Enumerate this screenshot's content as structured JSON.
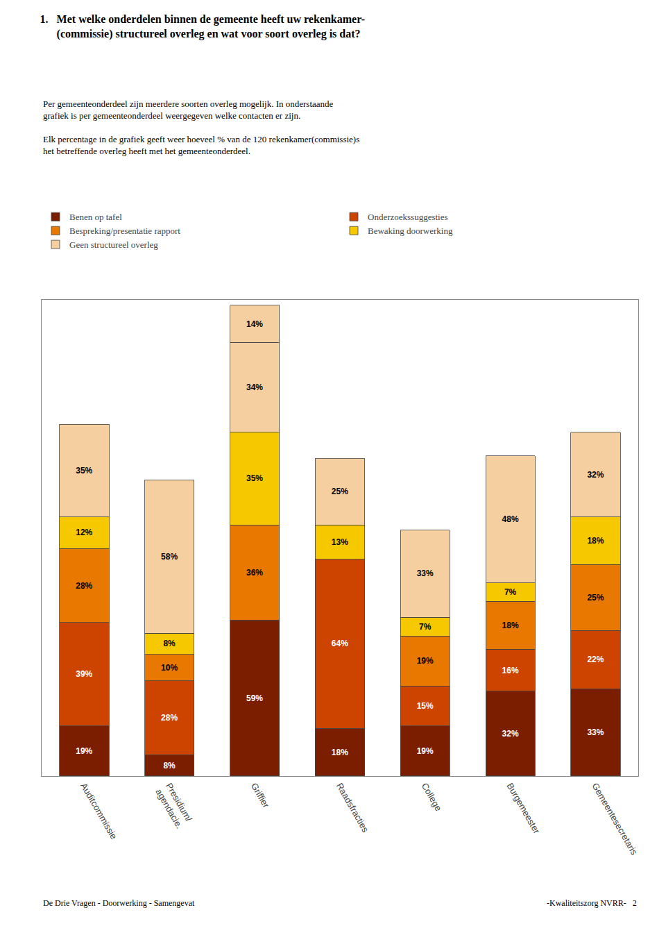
{
  "chart_data": {
    "type": "bar",
    "stacked": true,
    "title": "1.   Met welke onderdelen binnen de gemeente heeft uw rekenkamer-\n      (commissie) structureel overleg en wat voor soort overleg is dat?",
    "subtitle": [
      "Per gemeenteonderdeel zijn meerdere soorten overleg mogelijk. In onderstaande\ngrafiek is per gemeenteonderdeel weergegeven welke contacten er zijn.",
      "Elk percentage in de grafiek geeft weer hoeveel % van de 120 rekenkamer(commissie)s\nhet betreffende overleg heeft met het gemeenteonderdeel."
    ],
    "annotations": [
      "De Drie Vragen - Doorwerking - Samengevat",
      "-Kwaliteitszorg NVRR-   2"
    ],
    "categories": [
      "Auditcommissie",
      "Presidium/\nagendacie.",
      "Griffier",
      "Raadsfracties",
      "College",
      "Burgemeester",
      "Gemeentesecretaris"
    ],
    "series": [
      {
        "name": "Benen op tafel",
        "color": "#7B1E00",
        "values": [
          19,
          8,
          59,
          18,
          19,
          32,
          33
        ],
        "value_labels": [
          "19%",
          "8%",
          "59%",
          "18%",
          "19%",
          "32%",
          "33%"
        ]
      },
      {
        "name": "Onderzoekssuggesties",
        "color": "#CC4400",
        "values": [
          39,
          28,
          0,
          64,
          15,
          16,
          22
        ],
        "value_labels": [
          "39%",
          "28%",
          null,
          "64%",
          "15%",
          "16%",
          "22%"
        ]
      },
      {
        "name": "Bespreking/presentatie rapport",
        "color": "#E87800",
        "values": [
          28,
          10,
          36,
          0,
          19,
          18,
          25
        ],
        "value_labels": [
          "28%",
          "10%",
          "36%",
          null,
          "19%",
          "18%",
          "25%"
        ]
      },
      {
        "name": "Bewaking doorwerking",
        "color": "#F5C800",
        "values": [
          12,
          8,
          35,
          13,
          7,
          7,
          18
        ],
        "value_labels": [
          "12%",
          "8%",
          "35%",
          "13%",
          "7%",
          "7%",
          "18%"
        ]
      },
      {
        "name": "Geen structureel overleg",
        "color": "#F5CFA0",
        "values": [
          35,
          58,
          34,
          25,
          33,
          48,
          32
        ],
        "value_labels": [
          "35%",
          "58%",
          "34%",
          "25%",
          "33%",
          "48%",
          "32%"
        ]
      },
      {
        "name": "Geen structureel overleg",
        "color": "#F5CFA0",
        "values": [
          null,
          null,
          14,
          null,
          null,
          null,
          null
        ],
        "value_labels": [
          null,
          null,
          "14%",
          null,
          null,
          null,
          null
        ]
      }
    ],
    "ylim": [
      0,
      180
    ],
    "tick_labels": "x",
    "grid": false,
    "legend": "top",
    "data_labels": true
  }
}
